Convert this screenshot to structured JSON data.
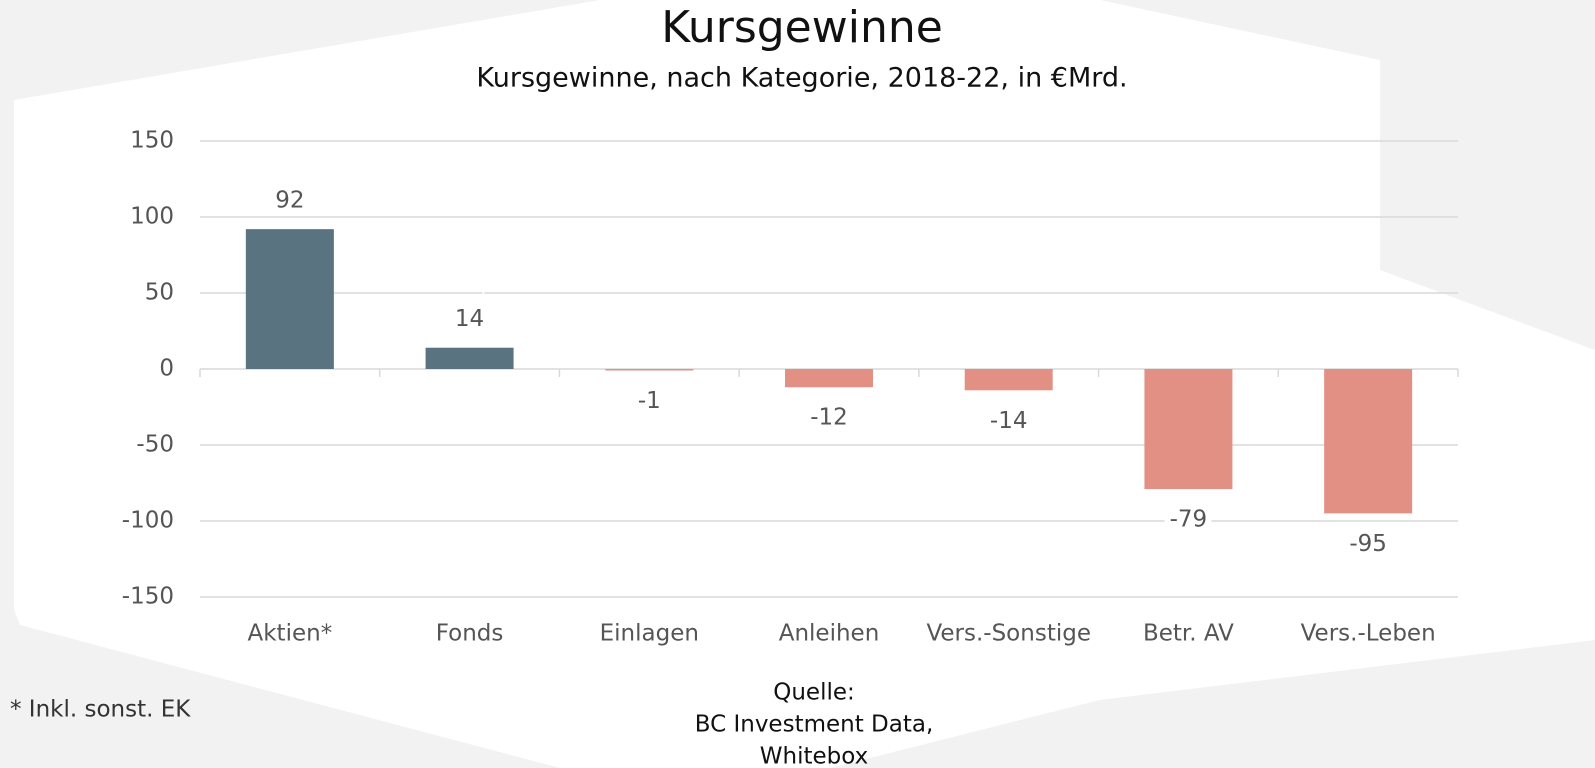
{
  "chart_data": {
    "type": "bar",
    "title": "Kursgewinne",
    "subtitle": "Kursgewinne, nach Kategorie, 2018-22, in €Mrd.",
    "categories": [
      "Aktien*",
      "Fonds",
      "Einlagen",
      "Anleihen",
      "Vers.-Sonstige",
      "Betr. AV",
      "Vers.-Leben"
    ],
    "values": [
      92,
      14,
      -1,
      -12,
      -14,
      -79,
      -95
    ],
    "colors": [
      "#5a7380",
      "#5a7380",
      "#e39084",
      "#e39084",
      "#e39084",
      "#e39084",
      "#e39084"
    ],
    "ylim": [
      -150,
      150
    ],
    "yticks": [
      -150,
      -100,
      -50,
      0,
      50,
      100,
      150
    ],
    "grid": true,
    "footnote": "* Inkl. sonst. EK",
    "source": [
      "Quelle:",
      "BC Investment Data,",
      "Whitebox"
    ]
  }
}
